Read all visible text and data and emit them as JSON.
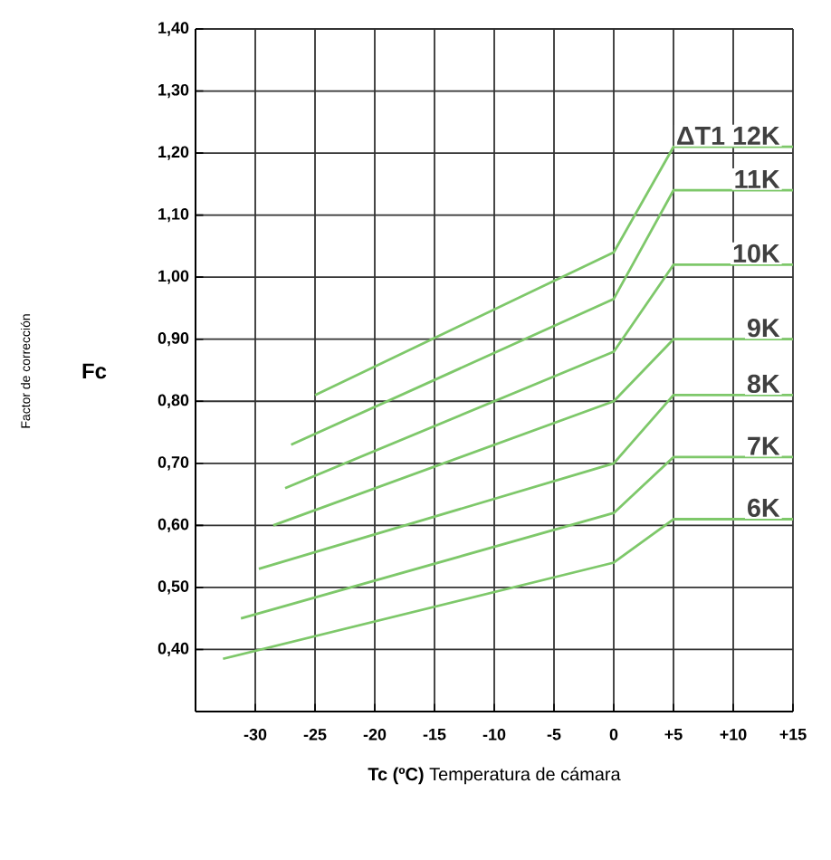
{
  "chart_data": {
    "type": "line",
    "xlabel": "**Tc (ºC)** Temperatura de cámara",
    "annotations": [
      "Fc",
      "Factor de corrección"
    ],
    "xlim": [
      -35,
      15
    ],
    "ylim": [
      0.3,
      1.4
    ],
    "xticks": [
      {
        "value": -35,
        "label": null
      },
      -30,
      -25,
      -20,
      -15,
      -10,
      -5,
      0,
      {
        "value": 5,
        "label": "+5"
      },
      {
        "value": 10,
        "label": "+10"
      },
      {
        "value": 15,
        "label": "+15"
      }
    ],
    "yticks": [
      {
        "value": 0.3,
        "label": null
      },
      {
        "value": 0.4,
        "label": "0,40"
      },
      {
        "value": 0.5,
        "label": "0,50"
      },
      {
        "value": 0.6,
        "label": "0,60"
      },
      {
        "value": 0.7,
        "label": "0,70"
      },
      {
        "value": 0.8,
        "label": "0,80"
      },
      {
        "value": 0.9,
        "label": "0,90"
      },
      {
        "value": 1.0,
        "label": "1,00"
      },
      {
        "value": 1.1,
        "label": "1,10"
      },
      {
        "value": 1.2,
        "label": "1,20"
      },
      {
        "value": 1.3,
        "label": "1,30"
      },
      {
        "value": 1.4,
        "label": "1,40"
      }
    ],
    "grid": true,
    "marker": "none",
    "line_style": "solid",
    "series": [
      {
        "name": "ΔT1 12K",
        "color": "#7ec86a",
        "x": [
          -25,
          0,
          5,
          15
        ],
        "values": [
          0.81,
          1.04,
          1.21,
          1.21
        ]
      },
      {
        "name": "11K",
        "color": "#7ec86a",
        "x": [
          -27,
          0,
          5,
          15
        ],
        "values": [
          0.73,
          0.965,
          1.14,
          1.14
        ]
      },
      {
        "name": "10K",
        "color": "#7ec86a",
        "x": [
          -27.5,
          0,
          5,
          15
        ],
        "values": [
          0.66,
          0.88,
          1.02,
          1.02
        ]
      },
      {
        "name": "9K",
        "color": "#7ec86a",
        "x": [
          -28.5,
          0,
          5,
          15
        ],
        "values": [
          0.6,
          0.8,
          0.9,
          0.9
        ]
      },
      {
        "name": "8K",
        "color": "#7ec86a",
        "x": [
          -29.7,
          0,
          5,
          15
        ],
        "values": [
          0.53,
          0.7,
          0.81,
          0.81
        ]
      },
      {
        "name": "7K",
        "color": "#7ec86a",
        "x": [
          -31.2,
          0,
          5,
          15
        ],
        "values": [
          0.45,
          0.62,
          0.71,
          0.71
        ]
      },
      {
        "name": "6K",
        "color": "#7ec86a",
        "x": [
          -32.7,
          0,
          5,
          15
        ],
        "values": [
          0.385,
          0.54,
          0.61,
          0.61
        ]
      }
    ]
  }
}
